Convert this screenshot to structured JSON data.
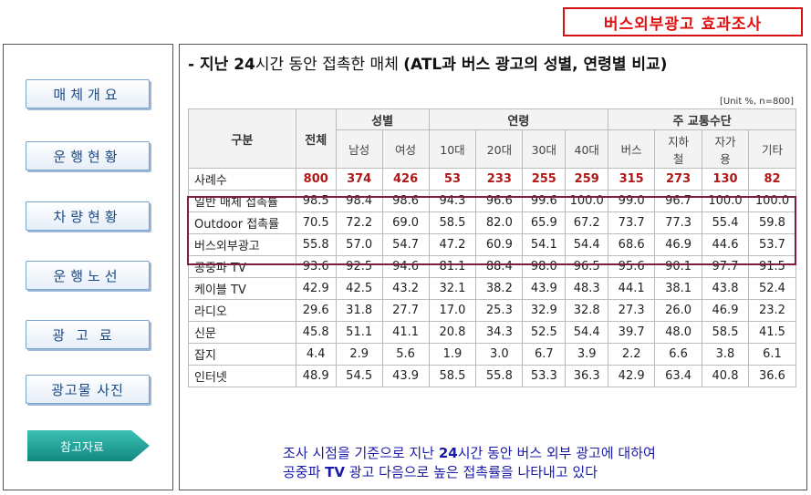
{
  "badge": "버스외부광고 효과조사",
  "sidebar": {
    "items": [
      {
        "label": "매체개요"
      },
      {
        "label": "운행현황"
      },
      {
        "label": "차량현황"
      },
      {
        "label": "운행노선"
      },
      {
        "label": "광고료"
      },
      {
        "label": "광고물 사진"
      }
    ],
    "active_label": "참고자료"
  },
  "heading": {
    "prefix": "- 지난 ",
    "num": "24",
    "mid": "시간 동안 접촉한 매체 ",
    "paren_open": "(ATL",
    "rest": "과 버스 광고의 성별, 연령별 비교)"
  },
  "unit_note": "[Unit %, n=800]",
  "table": {
    "header": {
      "category": "구분",
      "total": "전체",
      "gender": "성별",
      "age": "연령",
      "transport": "주 교통수단",
      "sub": [
        "남성",
        "여성",
        "10대",
        "20대",
        "30대",
        "40대",
        "버스",
        "지하철",
        "자가용",
        "기타"
      ]
    },
    "rows": [
      {
        "label": "사례수",
        "values": [
          "800",
          "374",
          "426",
          "53",
          "233",
          "255",
          "259",
          "315",
          "273",
          "130",
          "82"
        ]
      },
      {
        "label": "일반 매체 접촉률",
        "values": [
          "98.5",
          "98.4",
          "98.6",
          "94.3",
          "96.6",
          "99.6",
          "100.0",
          "99.0",
          "96.7",
          "100.0",
          "100.0"
        ]
      },
      {
        "label": "Outdoor 접촉률",
        "values": [
          "70.5",
          "72.2",
          "69.0",
          "58.5",
          "82.0",
          "65.9",
          "67.2",
          "73.7",
          "77.3",
          "55.4",
          "59.8"
        ]
      },
      {
        "label": "버스외부광고",
        "values": [
          "55.8",
          "57.0",
          "54.7",
          "47.2",
          "60.9",
          "54.1",
          "54.4",
          "68.6",
          "46.9",
          "44.6",
          "53.7"
        ]
      },
      {
        "label": "공중파 TV",
        "values": [
          "93.6",
          "92.5",
          "94.6",
          "81.1",
          "88.4",
          "98.0",
          "96.5",
          "95.6",
          "90.1",
          "97.7",
          "91.5"
        ]
      },
      {
        "label": "케이블 TV",
        "values": [
          "42.9",
          "42.5",
          "43.2",
          "32.1",
          "38.2",
          "43.9",
          "48.3",
          "44.1",
          "38.1",
          "43.8",
          "52.4"
        ]
      },
      {
        "label": "라디오",
        "values": [
          "29.6",
          "31.8",
          "27.7",
          "17.0",
          "25.3",
          "32.9",
          "32.8",
          "27.3",
          "26.0",
          "46.9",
          "23.2"
        ]
      },
      {
        "label": "신문",
        "values": [
          "45.8",
          "51.1",
          "41.1",
          "20.8",
          "34.3",
          "52.5",
          "54.4",
          "39.7",
          "48.0",
          "58.5",
          "41.5"
        ]
      },
      {
        "label": "잡지",
        "values": [
          "4.4",
          "2.9",
          "5.6",
          "1.9",
          "3.0",
          "6.7",
          "3.9",
          "2.2",
          "6.6",
          "3.8",
          "6.1"
        ]
      },
      {
        "label": "인터넷",
        "values": [
          "48.9",
          "54.5",
          "43.9",
          "58.5",
          "55.8",
          "53.3",
          "36.3",
          "42.9",
          "63.4",
          "40.8",
          "36.6"
        ]
      }
    ]
  },
  "conclusion": {
    "l1a": "조사 시점을 기준으로 지난 ",
    "l1b": "24",
    "l1c": "시간 동안 버스 외부 광고에 대하여",
    "l2a": "공중파 ",
    "l2b": "TV",
    "l2c": " 광고 다음으로 높은 접촉률을 나타내고 있다"
  },
  "colors": {
    "badge": "#e01010",
    "nav_text": "#1b4a86",
    "active_nav": "#1aa39a",
    "highlight_border": "#7a1f3d",
    "count_values": "#b01818",
    "conclusion_text": "#1a1aa8"
  }
}
